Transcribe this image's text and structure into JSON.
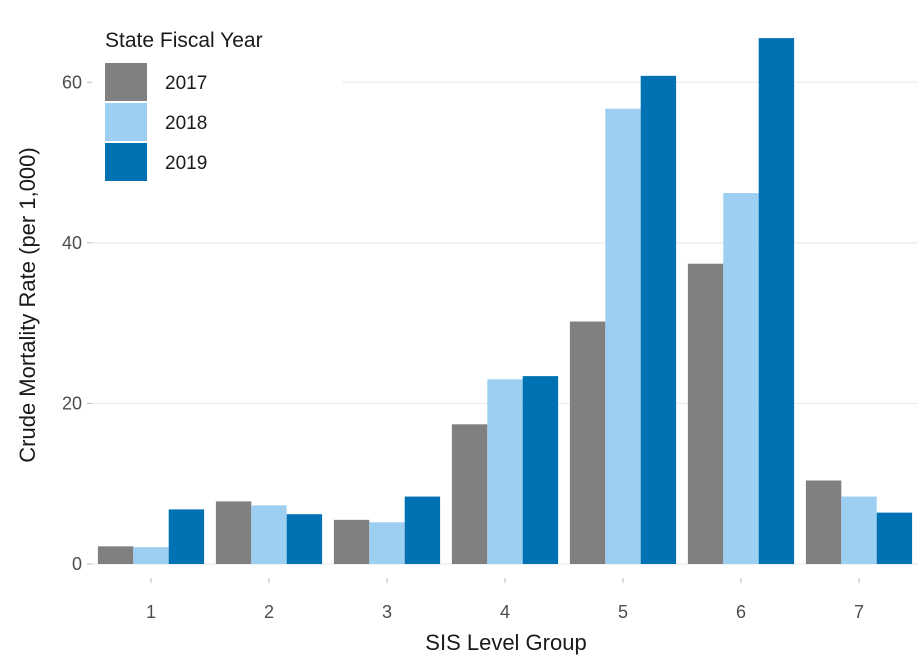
{
  "chart_data": {
    "type": "bar",
    "title": "",
    "xlabel": "SIS Level Group",
    "ylabel": "Crude Mortality Rate (per 1,000)",
    "categories": [
      "1",
      "2",
      "3",
      "4",
      "5",
      "6",
      "7"
    ],
    "series": [
      {
        "name": "2017",
        "color": "#808080",
        "values": [
          2.2,
          7.8,
          5.5,
          17.4,
          30.2,
          37.4,
          10.4
        ]
      },
      {
        "name": "2018",
        "color": "#9dcff3",
        "values": [
          2.1,
          7.3,
          5.2,
          23.0,
          56.7,
          46.2,
          8.4
        ]
      },
      {
        "name": "2019",
        "color": "#0071b2",
        "values": [
          6.8,
          6.2,
          8.4,
          23.4,
          60.8,
          65.5,
          6.4
        ]
      }
    ],
    "ylim": [
      0,
      69
    ],
    "yticks": [
      0,
      20,
      40,
      60
    ],
    "grid": true,
    "legend": {
      "title": "State Fiscal Year",
      "position": "top-left"
    }
  }
}
